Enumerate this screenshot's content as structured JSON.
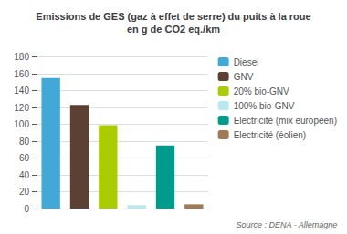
{
  "chart_data": {
    "type": "bar",
    "title": "Emissions de GES (gaz à effet de serre) du puits à la roue\nen g de CO2 eq./km",
    "categories": [
      "Diesel",
      "GNV",
      "20% bio-GNV",
      "100% bio-GNV",
      "Electricité (mix européen)",
      "Electricité (éolien)"
    ],
    "values": [
      155,
      123,
      99,
      4,
      75,
      5
    ],
    "colors": [
      "#41A8D8",
      "#5C4033",
      "#AACC00",
      "#B8E8F0",
      "#009B8D",
      "#9E7B55"
    ],
    "ylim": [
      0,
      185
    ],
    "yticks": [
      0,
      20,
      40,
      60,
      80,
      100,
      120,
      140,
      160,
      180
    ],
    "grid": true,
    "legend": "right",
    "tick_labels": "y",
    "annotation": "Source : DENA - Allemagne"
  }
}
